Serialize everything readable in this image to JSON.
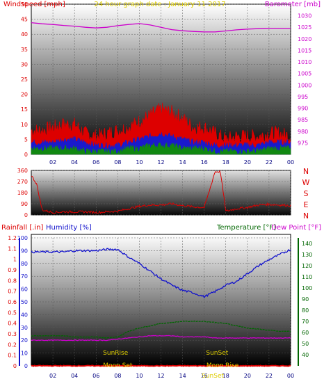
{
  "colors": {
    "wind": "#dd0000",
    "baro": "#cc00cc",
    "title": "#ddcc00",
    "humidity": "#1111cc",
    "rain": "#dd0000",
    "temperature": "#006600",
    "dew": "#cc00cc",
    "sun_label": "#ddcc00",
    "windblue": "#1a1acc",
    "windgreen": "#118811"
  },
  "chart_data": [
    {
      "type": "line",
      "title": "24 hour graph date : January 11 2017",
      "ylabel": "Windspeed [mph]",
      "y2label": "Barometer [mb]",
      "ylim": [
        0,
        50
      ],
      "y2lim": [
        970,
        1035
      ],
      "yticks": [
        "0",
        "5",
        "10",
        "15",
        "20",
        "25",
        "30",
        "35",
        "40",
        "45",
        "50"
      ],
      "y2ticks": [
        "975",
        "980",
        "985",
        "990",
        "995",
        "1000",
        "1005",
        "1010",
        "1015",
        "1020",
        "1025",
        "1030"
      ],
      "xticks": [
        "02",
        "04",
        "06",
        "08",
        "10",
        "12",
        "14",
        "16",
        "18",
        "20",
        "22",
        "00"
      ],
      "x": [
        0,
        1,
        2,
        3,
        4,
        5,
        6,
        7,
        8,
        9,
        10,
        11,
        12,
        13,
        14,
        15,
        16,
        17,
        18,
        19,
        20,
        21,
        22,
        23,
        24
      ],
      "series": [
        {
          "axis": "y",
          "values": [
            8,
            8,
            9,
            10,
            10,
            7,
            6,
            7,
            8,
            9,
            11,
            13,
            15,
            14,
            12,
            9,
            9,
            7,
            5,
            6,
            6,
            6,
            7,
            7,
            6
          ]
        },
        {
          "axis": "y",
          "values": [
            4,
            4,
            4,
            5,
            5,
            4,
            3,
            3,
            3,
            4,
            5,
            6,
            7,
            6,
            5,
            4,
            4,
            3,
            3,
            3,
            3,
            3,
            4,
            4,
            4
          ]
        },
        {
          "axis": "y",
          "values": [
            2,
            2,
            2,
            2,
            2,
            1,
            1,
            1,
            1,
            2,
            2,
            3,
            3,
            3,
            2,
            2,
            2,
            1,
            1,
            1,
            1,
            1,
            2,
            2,
            2
          ]
        },
        {
          "axis": "y2",
          "values": [
            1027,
            1026.5,
            1026.2,
            1025.8,
            1025.5,
            1025,
            1024.7,
            1025,
            1025.7,
            1026.2,
            1026.6,
            1026,
            1025,
            1024,
            1023.5,
            1023.2,
            1023,
            1023,
            1023.4,
            1023.9,
            1024.2,
            1024.4,
            1024.6,
            1024.6,
            1024.5
          ]
        }
      ]
    },
    {
      "type": "line",
      "ylim": [
        0,
        360
      ],
      "yticks": [
        "0",
        "90",
        "180",
        "270",
        "360"
      ],
      "compass": [
        "N",
        "W",
        "S",
        "E",
        "N"
      ],
      "x": [
        0,
        0.5,
        1,
        1.5,
        2,
        3,
        4,
        5,
        6,
        7,
        8,
        9,
        10,
        11,
        12,
        13,
        14,
        15,
        16,
        16.5,
        17,
        17.5,
        18,
        19,
        20,
        21,
        22,
        23,
        24
      ],
      "series": [
        {
          "values": [
            320,
            250,
            40,
            30,
            20,
            25,
            25,
            25,
            20,
            25,
            30,
            50,
            70,
            80,
            80,
            90,
            75,
            65,
            60,
            200,
            350,
            350,
            30,
            50,
            60,
            80,
            85,
            80,
            75
          ]
        }
      ]
    },
    {
      "type": "line",
      "y1label": "Rainfall [.in]",
      "y2label": "Humidity [%]",
      "y3label": "Temperature [°F]",
      "y4label": "Dew Point [°F]",
      "ylim_humidity": [
        0,
        100
      ],
      "ylim_temp": [
        30,
        145
      ],
      "y1ticks": [
        "0",
        "0.1",
        "0.2",
        "0.3",
        "0.4",
        "0.5",
        "0.6",
        "0.7",
        "0.8",
        "0.9",
        "1",
        "1.1",
        "1.2"
      ],
      "y2ticks": [
        "0",
        "10",
        "20",
        "30",
        "40",
        "50",
        "60",
        "70",
        "80",
        "90",
        "100"
      ],
      "y3ticks": [
        "40",
        "50",
        "60",
        "70",
        "80",
        "90",
        "100",
        "110",
        "120",
        "130",
        "140"
      ],
      "xticks": [
        "02",
        "04",
        "06",
        "08",
        "10",
        "12",
        "14",
        "16",
        "18",
        "20",
        "22",
        "00"
      ],
      "x": [
        0,
        1,
        2,
        3,
        4,
        5,
        6,
        7,
        8,
        9,
        10,
        11,
        12,
        13,
        14,
        15,
        16,
        17,
        18,
        19,
        20,
        21,
        22,
        23,
        24
      ],
      "series": [
        {
          "name": "Humidity [%]",
          "axis": "humidity",
          "values": [
            89,
            89,
            89,
            89,
            90,
            90,
            90,
            91,
            91,
            85,
            80,
            74,
            68,
            63,
            59,
            57,
            54,
            58,
            63,
            66,
            72,
            78,
            83,
            87,
            91
          ]
        },
        {
          "name": "Temperature [°F]",
          "axis": "temp",
          "values": [
            57,
            57,
            57,
            57,
            56,
            56,
            56,
            55,
            56,
            61,
            64,
            66,
            68,
            69,
            70,
            70,
            70,
            69,
            68,
            66,
            64,
            63,
            62,
            61,
            61
          ]
        },
        {
          "name": "Dew Point [°F]",
          "axis": "temp",
          "values": [
            53,
            53,
            53,
            53,
            53,
            53,
            53,
            53,
            54,
            55,
            56,
            57,
            57,
            57,
            56,
            56,
            56,
            55,
            55,
            55,
            55,
            55,
            55,
            55,
            55
          ]
        },
        {
          "name": "Rainfall [.in]",
          "axis": "humidity",
          "values": [
            0,
            0,
            0,
            0,
            0,
            0,
            0,
            0,
            0,
            0,
            0,
            0,
            0,
            0,
            0,
            0,
            0,
            0,
            0,
            0,
            0,
            0,
            0,
            0,
            0
          ]
        }
      ],
      "events": [
        {
          "label": "SunRise",
          "hour": 7.8,
          "row": "upper"
        },
        {
          "label": "SunSet",
          "hour": 17.2,
          "row": "upper"
        },
        {
          "label": "Moon Set",
          "hour": 8.0,
          "row": "lower"
        },
        {
          "label": "Moon Rise",
          "hour": 17.7,
          "row": "lower"
        },
        {
          "label": "SunSet",
          "hour": 16.8,
          "row": "bottom"
        }
      ]
    }
  ]
}
